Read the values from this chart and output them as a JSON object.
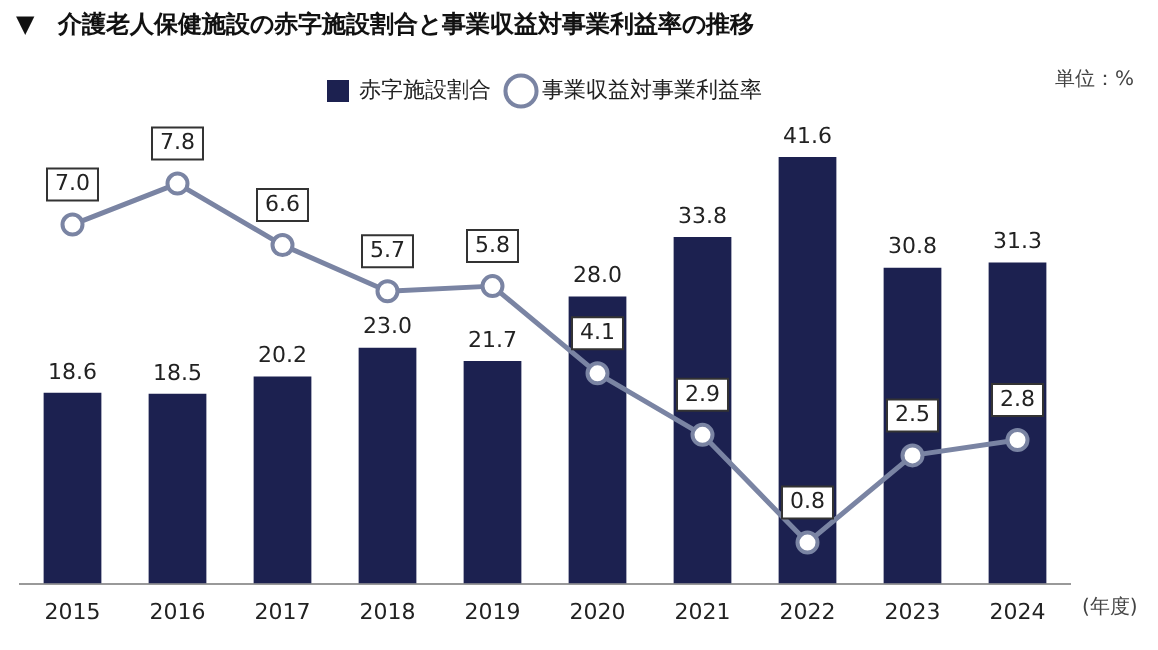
{
  "chart_data": {
    "type": "bar",
    "title": "▼　介護老人保健施設の赤字施設割合と事業収益対事業利益率の推移",
    "xlabel": "(年度)",
    "annotations": [
      "単位：%"
    ],
    "categories": [
      "2015",
      "2016",
      "2017",
      "2018",
      "2019",
      "2020",
      "2021",
      "2022",
      "2023",
      "2024"
    ],
    "series": [
      {
        "name": "赤字施設割合",
        "color": "#1c2150",
        "values": [
          18.6,
          18.5,
          20.2,
          23.0,
          21.7,
          28.0,
          33.8,
          41.6,
          30.8,
          31.3
        ],
        "value_labels": [
          "18.6",
          "18.5",
          "20.2",
          "23.0",
          "21.7",
          "28.0",
          "33.8",
          "41.6",
          "30.8",
          "31.3"
        ]
      },
      {
        "name": "事業収益対事業利益率",
        "type": "line",
        "axis": "y2",
        "color": "#7a84a3",
        "values": [
          7.0,
          7.8,
          6.6,
          5.7,
          5.8,
          4.1,
          2.9,
          0.8,
          2.5,
          2.8
        ],
        "value_labels": [
          "7.0",
          "7.8",
          "6.6",
          "5.7",
          "5.8",
          "4.1",
          "2.9",
          "0.8",
          "2.5",
          "2.8"
        ]
      }
    ],
    "legend": "top",
    "marker": "circle",
    "tick_labels": "x",
    "grid": false
  }
}
